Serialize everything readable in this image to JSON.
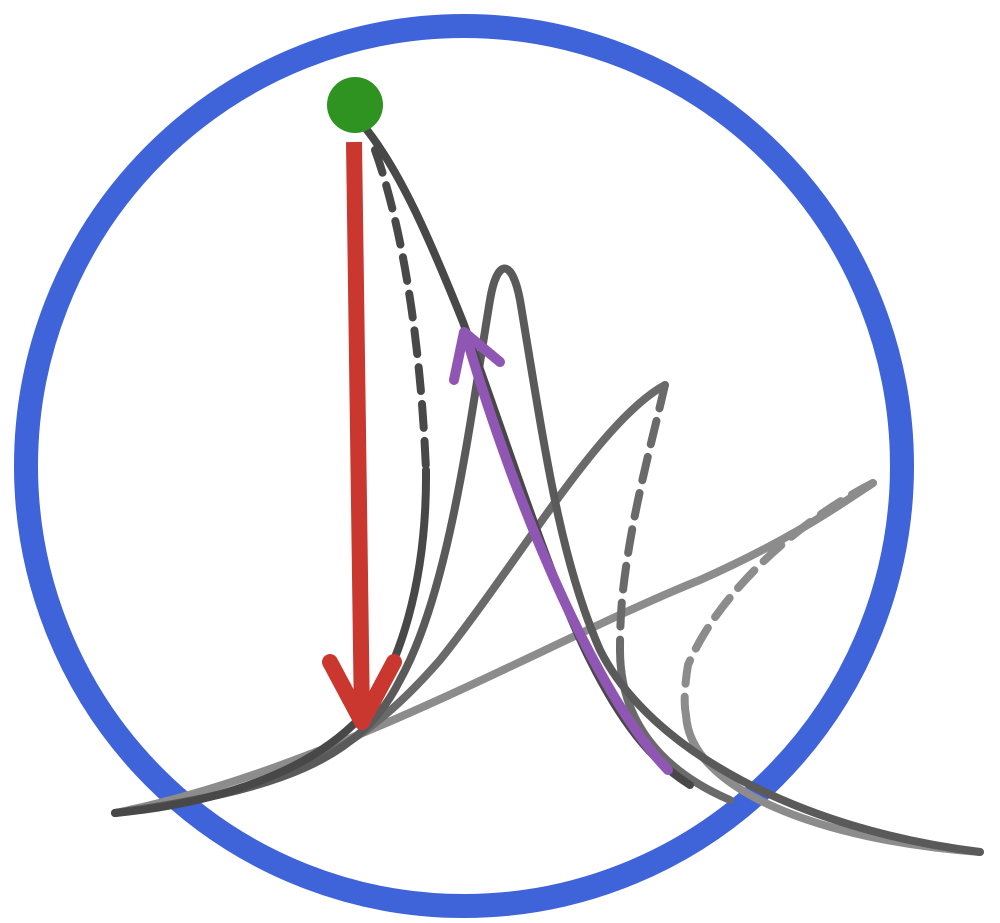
{
  "diagram": {
    "colors": {
      "background": "#ffffff",
      "circle": "#3f63d8",
      "start_point": "#2e9320",
      "jump_arrow": "#c9372f",
      "return_arrow": "#8f57b3",
      "curve_dark": "#484848",
      "curve_mid": "#6a6a6a",
      "curve_light": "#8c8c8c"
    },
    "curve_styles": {
      "stable": "solid",
      "unstable": "dashed"
    }
  }
}
